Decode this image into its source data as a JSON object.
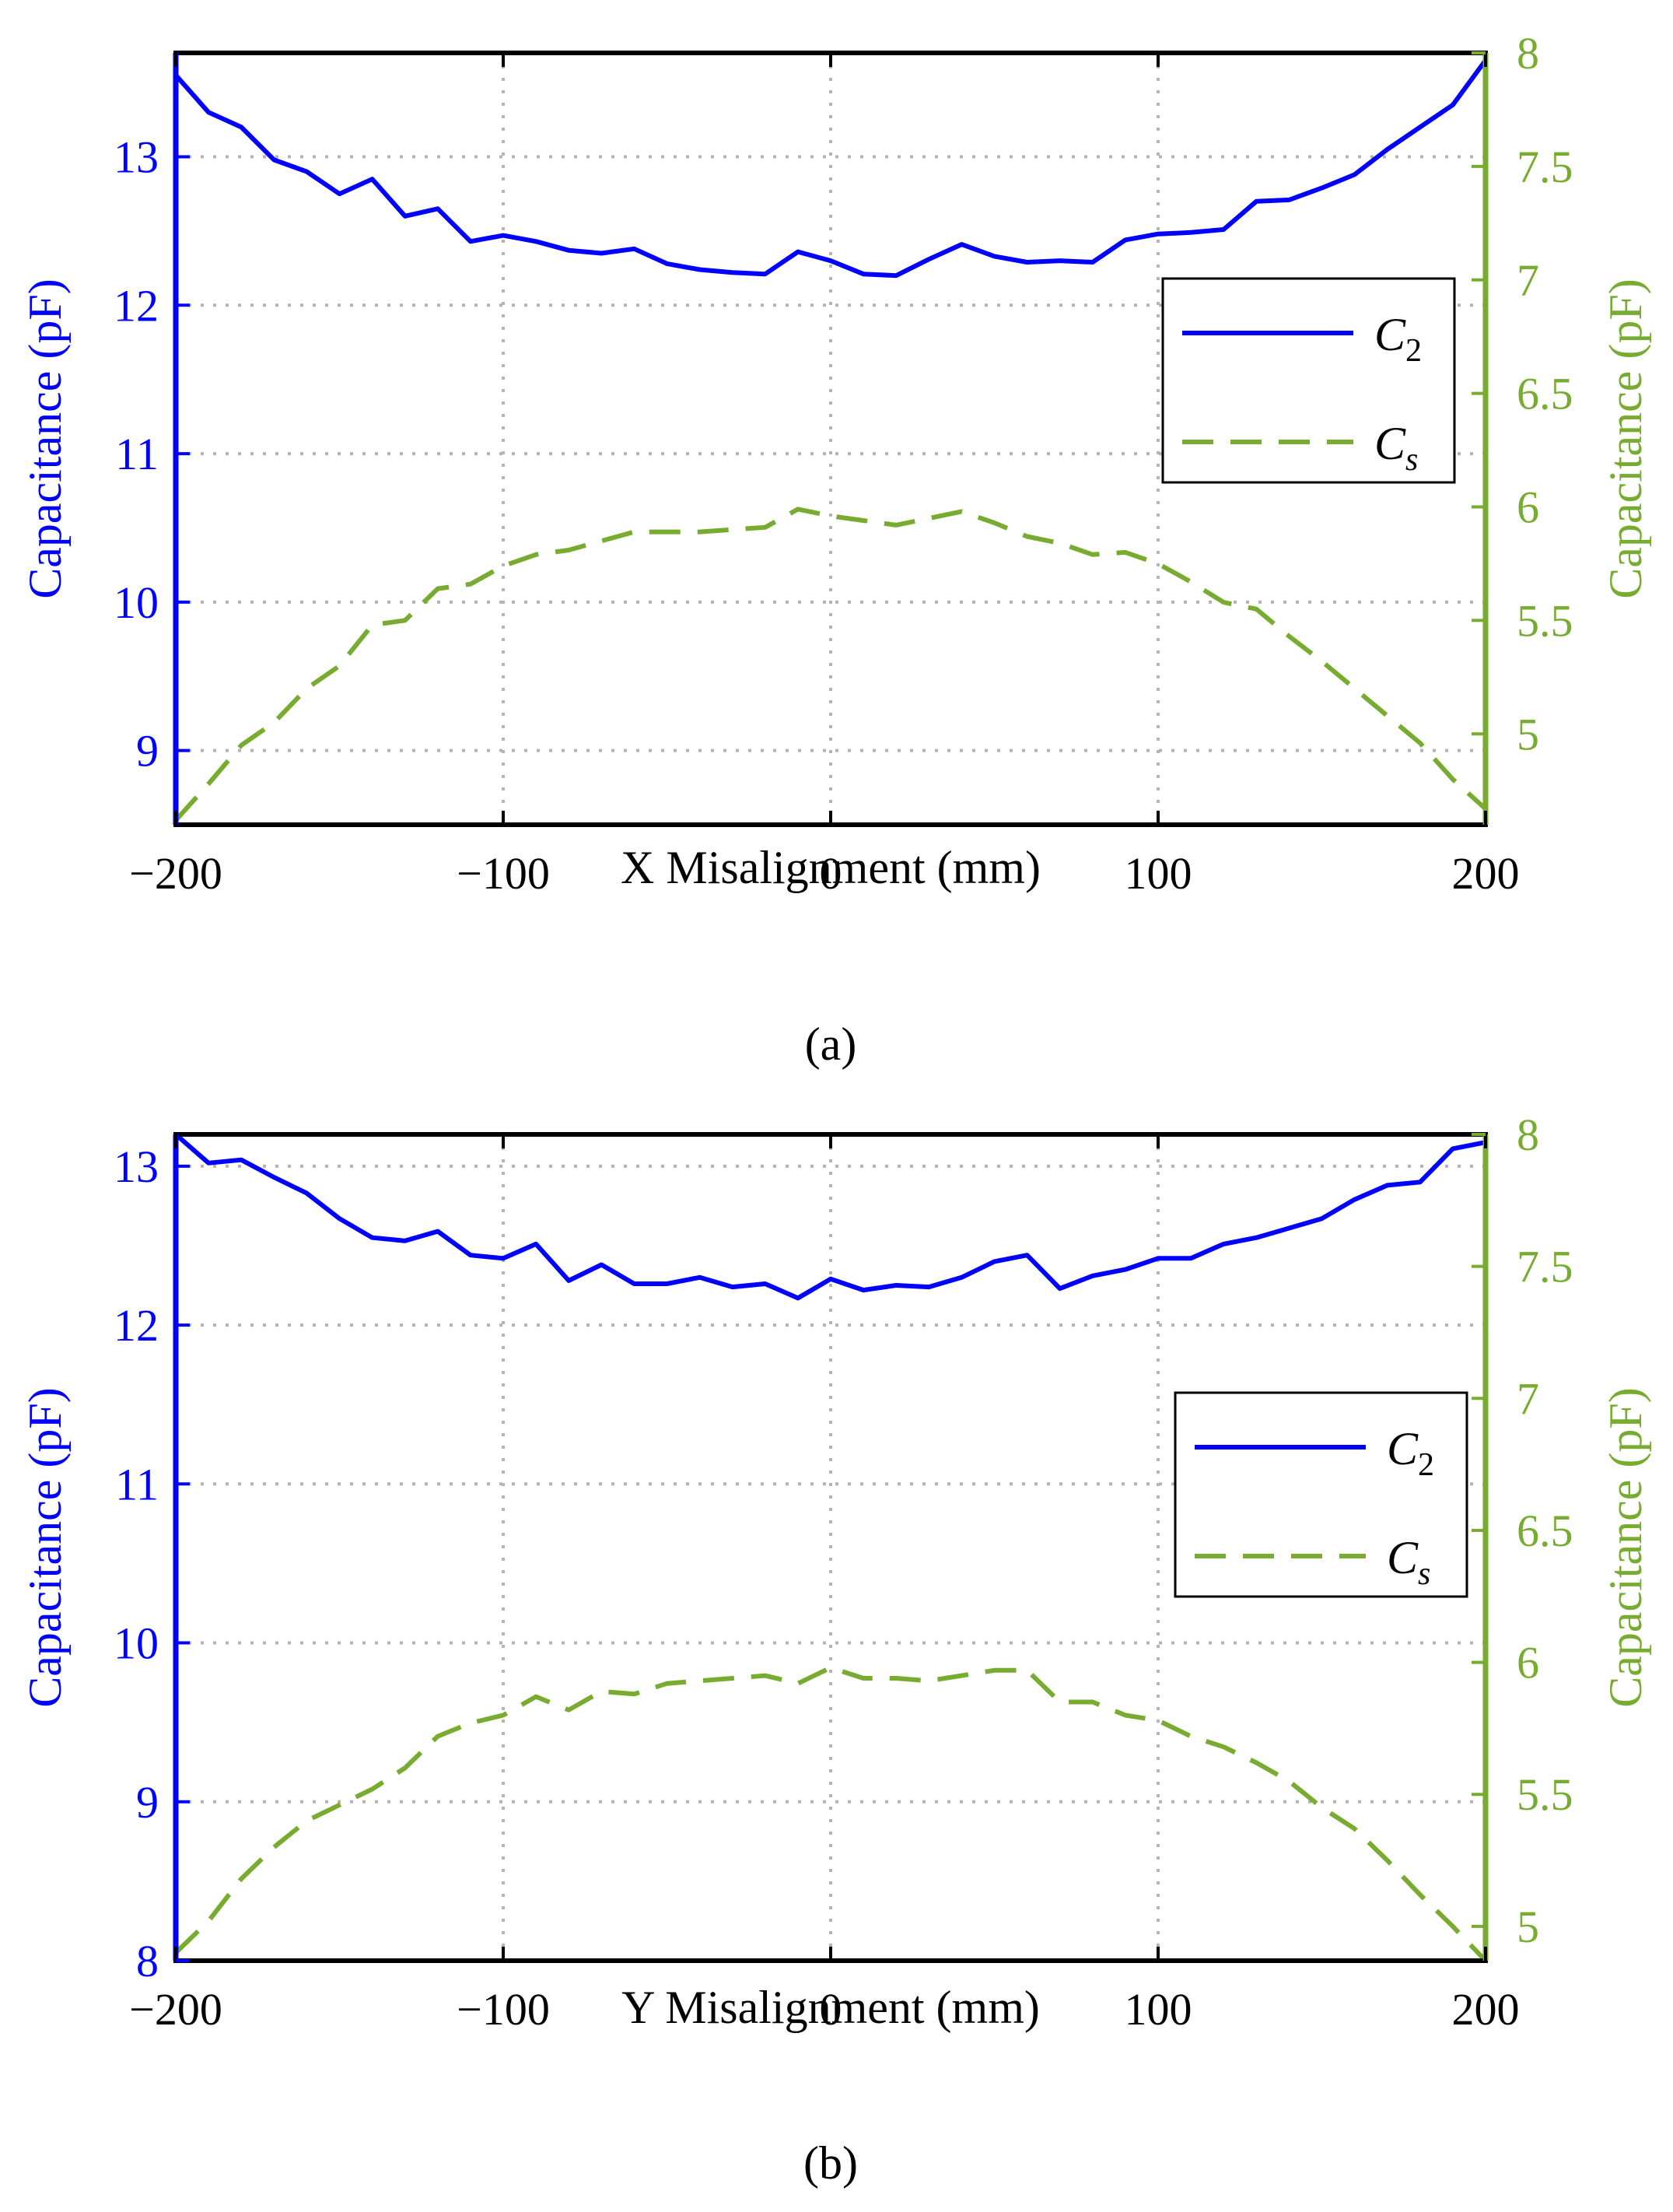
{
  "colors": {
    "left": "#0000ff",
    "right": "#77ac30",
    "frame": "#000000",
    "grid": "#b4b4b4"
  },
  "chart_data": [
    {
      "type": "line",
      "caption": "(a)",
      "xlabel": "X Misalignment (mm)",
      "ylabel_left": "Capacitance (pF)",
      "ylabel_right": "Capacitance (pF)",
      "xlim": [
        -200,
        200
      ],
      "ylim_left": [
        8.5,
        13.7
      ],
      "ylim_right": [
        4.6,
        8.0
      ],
      "xticks": [
        -200,
        -100,
        0,
        100,
        200
      ],
      "xtick_labels": [
        "−200",
        "−100",
        "0",
        "100",
        "200"
      ],
      "yticks_left": [
        9,
        10,
        11,
        12,
        13
      ],
      "ytick_labels_left": [
        "9",
        "10",
        "11",
        "12",
        "13"
      ],
      "yticks_right": [
        5,
        5.5,
        6,
        6.5,
        7,
        7.5,
        8
      ],
      "ytick_labels_right": [
        "5",
        "5.5",
        "6",
        "6.5",
        "7",
        "7.5",
        "8"
      ],
      "grid": true,
      "legend_position": "center-right",
      "series": [
        {
          "name": "C2",
          "label_base": "C",
          "label_sub": "2",
          "axis": "left",
          "style": "solid",
          "x": [
            -200,
            -190,
            -180,
            -170,
            -160,
            -150,
            -140,
            -130,
            -120,
            -110,
            -100,
            -90,
            -80,
            -70,
            -60,
            -50,
            -40,
            -30,
            -20,
            -10,
            0,
            10,
            20,
            30,
            40,
            50,
            60,
            70,
            80,
            90,
            100,
            110,
            120,
            130,
            140,
            150,
            160,
            170,
            180,
            190,
            200
          ],
          "y": [
            13.55,
            13.3,
            13.2,
            12.98,
            12.9,
            12.75,
            12.85,
            12.6,
            12.65,
            12.43,
            12.47,
            12.43,
            12.37,
            12.35,
            12.38,
            12.28,
            12.24,
            12.22,
            12.21,
            12.36,
            12.3,
            12.21,
            12.2,
            12.31,
            12.41,
            12.33,
            12.29,
            12.3,
            12.29,
            12.44,
            12.48,
            12.49,
            12.51,
            12.7,
            12.71,
            12.79,
            12.88,
            13.05,
            13.2,
            13.35,
            13.65
          ]
        },
        {
          "name": "Cs",
          "label_base": "C",
          "label_sub": "s",
          "axis": "right",
          "style": "dashed",
          "x": [
            -200,
            -190,
            -180,
            -170,
            -160,
            -150,
            -140,
            -130,
            -120,
            -110,
            -100,
            -90,
            -80,
            -70,
            -60,
            -50,
            -40,
            -30,
            -20,
            -10,
            0,
            10,
            20,
            30,
            40,
            50,
            60,
            70,
            80,
            90,
            100,
            110,
            120,
            130,
            140,
            150,
            160,
            170,
            180,
            190,
            200
          ],
          "y": [
            4.62,
            4.78,
            4.95,
            5.05,
            5.2,
            5.3,
            5.48,
            5.5,
            5.64,
            5.66,
            5.74,
            5.79,
            5.81,
            5.85,
            5.89,
            5.89,
            5.89,
            5.9,
            5.91,
            5.99,
            5.96,
            5.94,
            5.92,
            5.95,
            5.98,
            5.93,
            5.87,
            5.84,
            5.79,
            5.8,
            5.75,
            5.67,
            5.58,
            5.55,
            5.43,
            5.32,
            5.2,
            5.08,
            4.96,
            4.8,
            4.67
          ]
        }
      ]
    },
    {
      "type": "line",
      "caption": "(b)",
      "xlabel": "Y Misalignment  (mm)",
      "ylabel_left": "Capacitance (pF)",
      "ylabel_right": "Capacitance (pF)",
      "xlim": [
        -200,
        200
      ],
      "ylim_left": [
        8.0,
        13.2
      ],
      "ylim_right": [
        4.87,
        8.0
      ],
      "xticks": [
        -200,
        -100,
        0,
        100,
        200
      ],
      "xtick_labels": [
        "−200",
        "−100",
        "0",
        "100",
        "200"
      ],
      "yticks_left": [
        8,
        9,
        10,
        11,
        12,
        13
      ],
      "ytick_labels_left": [
        "8",
        "9",
        "10",
        "11",
        "12",
        "13"
      ],
      "yticks_right": [
        5,
        5.5,
        6,
        6.5,
        7,
        7.5,
        8
      ],
      "ytick_labels_right": [
        "5",
        "5.5",
        "6",
        "6.5",
        "7",
        "7.5",
        "8"
      ],
      "grid": true,
      "legend_position": "center-right",
      "series": [
        {
          "name": "C2",
          "label_base": "C",
          "label_sub": "2",
          "axis": "left",
          "style": "solid",
          "x": [
            -200,
            -190,
            -180,
            -170,
            -160,
            -150,
            -140,
            -130,
            -120,
            -110,
            -100,
            -90,
            -80,
            -70,
            -60,
            -50,
            -40,
            -30,
            -20,
            -10,
            0,
            10,
            20,
            30,
            40,
            50,
            60,
            70,
            80,
            90,
            100,
            110,
            120,
            130,
            140,
            150,
            160,
            170,
            180,
            190,
            200
          ],
          "y": [
            13.2,
            13.02,
            13.04,
            12.93,
            12.83,
            12.67,
            12.55,
            12.53,
            12.59,
            12.44,
            12.42,
            12.51,
            12.28,
            12.38,
            12.26,
            12.26,
            12.3,
            12.24,
            12.26,
            12.17,
            12.29,
            12.22,
            12.25,
            12.24,
            12.3,
            12.4,
            12.44,
            12.23,
            12.31,
            12.35,
            12.42,
            12.42,
            12.51,
            12.55,
            12.61,
            12.67,
            12.79,
            12.88,
            12.9,
            13.11,
            13.15
          ]
        },
        {
          "name": "Cs",
          "label_base": "C",
          "label_sub": "s",
          "axis": "right",
          "style": "dashed",
          "x": [
            -200,
            -190,
            -180,
            -170,
            -160,
            -150,
            -140,
            -130,
            -120,
            -110,
            -100,
            -90,
            -80,
            -70,
            -60,
            -50,
            -40,
            -30,
            -20,
            -10,
            0,
            10,
            20,
            30,
            40,
            50,
            60,
            70,
            80,
            90,
            100,
            110,
            120,
            130,
            140,
            150,
            160,
            170,
            180,
            190,
            200
          ],
          "y": [
            4.9,
            5.02,
            5.18,
            5.3,
            5.4,
            5.46,
            5.52,
            5.6,
            5.72,
            5.77,
            5.8,
            5.87,
            5.82,
            5.89,
            5.88,
            5.92,
            5.93,
            5.94,
            5.95,
            5.92,
            5.98,
            5.94,
            5.94,
            5.93,
            5.95,
            5.97,
            5.97,
            5.85,
            5.85,
            5.8,
            5.78,
            5.72,
            5.68,
            5.62,
            5.55,
            5.45,
            5.37,
            5.25,
            5.12,
            5.0,
            4.87
          ]
        }
      ]
    }
  ]
}
